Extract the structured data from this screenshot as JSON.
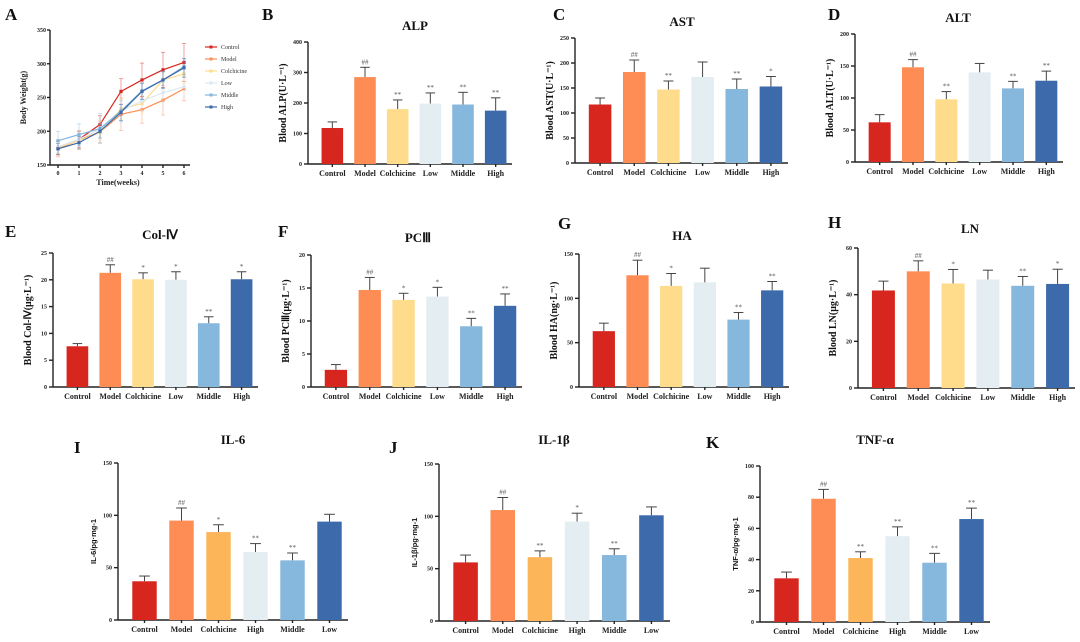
{
  "colors": {
    "Control": "#d7261e",
    "Model": "#fd8d55",
    "Colchicine": "#fedc8c",
    "Colchicine_cytokine": "#fdb55a",
    "Low": "#e4edf1",
    "High_cytokine": "#e4edf1",
    "Middle": "#86b7dc",
    "High": "#3c6aab",
    "Low_cytokine": "#3c6aab"
  },
  "chart_data": [
    {
      "id": "A",
      "panel_label": "A",
      "type": "line",
      "title": "",
      "xlabel": "Time(weeks)",
      "ylabel": "Body Weight(g)",
      "x": [
        0,
        1,
        2,
        3,
        4,
        5,
        6
      ],
      "ylim": [
        150,
        350
      ],
      "yticks": [
        150,
        200,
        250,
        300,
        350
      ],
      "legend_position": "right",
      "series": [
        {
          "name": "Control",
          "color": "#d7261e",
          "values": [
            175,
            188,
            210,
            259,
            276,
            291,
            302
          ],
          "err": [
            10,
            12,
            13,
            19,
            25,
            26,
            28
          ]
        },
        {
          "name": "Model",
          "color": "#fd8d55",
          "values": [
            174,
            187,
            199,
            225,
            232,
            246,
            263
          ],
          "err": [
            12,
            14,
            16,
            24,
            20,
            22,
            18
          ]
        },
        {
          "name": "Colchicine",
          "color": "#fedc8c",
          "values": [
            176,
            186,
            198,
            233,
            241,
            276,
            285
          ],
          "err": [
            8,
            10,
            12,
            15,
            14,
            12,
            14
          ]
        },
        {
          "name": "Low",
          "color": "#dbe8f3",
          "values": [
            177,
            188,
            203,
            230,
            245,
            257,
            266
          ],
          "err": [
            9,
            10,
            11,
            14,
            14,
            15,
            15
          ]
        },
        {
          "name": "Middle",
          "color": "#86b7dc",
          "values": [
            186,
            195,
            204,
            230,
            260,
            276,
            296
          ],
          "err": [
            14,
            16,
            22,
            16,
            12,
            13,
            12
          ]
        },
        {
          "name": "High",
          "color": "#3c6aab",
          "values": [
            174,
            183,
            200,
            228,
            259,
            276,
            294
          ],
          "err": [
            8,
            9,
            10,
            12,
            12,
            12,
            14
          ]
        }
      ]
    },
    {
      "id": "B",
      "panel_label": "B",
      "type": "bar",
      "title": "ALP",
      "ylabel": "Blood ALP(U·L⁻¹)",
      "ylim": [
        0,
        400
      ],
      "yticks": [
        0,
        100,
        200,
        300,
        400
      ],
      "categories": [
        "Control",
        "Model",
        "Colchicine",
        "Low",
        "Middle",
        "High"
      ],
      "values": [
        118,
        285,
        180,
        198,
        195,
        175
      ],
      "err": [
        20,
        32,
        30,
        35,
        40,
        42
      ],
      "sig": [
        "",
        "##",
        "**",
        "**",
        "**",
        "**"
      ]
    },
    {
      "id": "C",
      "panel_label": "C",
      "type": "bar",
      "title": "AST",
      "ylabel": "Blood AST(U·L⁻¹)",
      "ylim": [
        0,
        250
      ],
      "yticks": [
        0,
        50,
        100,
        150,
        200,
        250
      ],
      "categories": [
        "Control",
        "Model",
        "Colchicine",
        "Low",
        "Middle",
        "High"
      ],
      "values": [
        117,
        182,
        147,
        172,
        148,
        153
      ],
      "err": [
        13,
        24,
        17,
        30,
        20,
        20
      ],
      "sig": [
        "",
        "##",
        "**",
        "",
        "**",
        "*"
      ]
    },
    {
      "id": "D",
      "panel_label": "D",
      "type": "bar",
      "title": "ALT",
      "ylabel": "Blood ALT(U·L⁻¹)",
      "ylim": [
        0,
        200
      ],
      "yticks": [
        0,
        50,
        100,
        150,
        200
      ],
      "categories": [
        "Control",
        "Model",
        "Colchicine",
        "Low",
        "Middle",
        "High"
      ],
      "values": [
        62,
        148,
        98,
        140,
        115,
        127
      ],
      "err": [
        12,
        12,
        12,
        14,
        11,
        15
      ],
      "sig": [
        "",
        "##",
        "**",
        "",
        "**",
        "**"
      ]
    },
    {
      "id": "E",
      "panel_label": "E",
      "type": "bar",
      "title": "Col-Ⅳ",
      "ylabel": "Blood Col-Ⅳ(μg·L⁻¹)",
      "ylim": [
        0,
        25
      ],
      "yticks": [
        0,
        5,
        10,
        15,
        20,
        25
      ],
      "categories": [
        "Control",
        "Model",
        "Colchicine",
        "Low",
        "Middle",
        "High"
      ],
      "values": [
        7.6,
        21.3,
        20.1,
        20.0,
        11.9,
        20.1
      ],
      "err": [
        0.5,
        1.5,
        1.2,
        1.5,
        1.2,
        1.4
      ],
      "sig": [
        "",
        "##",
        "*",
        "*",
        "**",
        "*"
      ]
    },
    {
      "id": "F",
      "panel_label": "F",
      "type": "bar",
      "title": "PCⅢ",
      "ylabel": "Blood PCⅢ(μg·L⁻¹)",
      "ylim": [
        0,
        20
      ],
      "yticks": [
        0,
        5,
        10,
        15,
        20
      ],
      "categories": [
        "Control",
        "Model",
        "Colchicine",
        "Low",
        "Middle",
        "High"
      ],
      "values": [
        2.6,
        14.7,
        13.2,
        13.7,
        9.2,
        12.3
      ],
      "err": [
        0.8,
        1.9,
        1.0,
        1.4,
        1.2,
        1.8
      ],
      "sig": [
        "",
        "##",
        "*",
        "*",
        "**",
        "**"
      ]
    },
    {
      "id": "G",
      "panel_label": "G",
      "type": "bar",
      "title": "HA",
      "ylabel": "Blood HA(ng·L⁻¹)",
      "ylim": [
        0,
        150
      ],
      "yticks": [
        0,
        50,
        100,
        150
      ],
      "categories": [
        "Control",
        "Model",
        "Colchicine",
        "Low",
        "Middle",
        "High"
      ],
      "values": [
        63,
        126,
        114,
        118,
        76,
        109
      ],
      "err": [
        9,
        17,
        14,
        16,
        8,
        10
      ],
      "sig": [
        "",
        "##",
        "*",
        "",
        "**",
        "**"
      ]
    },
    {
      "id": "H",
      "panel_label": "H",
      "type": "bar",
      "title": "LN",
      "ylabel": "Blood LN(μg·L⁻¹)",
      "ylim": [
        0,
        60
      ],
      "yticks": [
        0,
        20,
        40,
        60
      ],
      "categories": [
        "Control",
        "Model",
        "Colchicine",
        "Low",
        "Middle",
        "High"
      ],
      "values": [
        41.8,
        50.0,
        44.8,
        46.5,
        43.8,
        44.6
      ],
      "err": [
        4,
        4.5,
        6,
        4,
        4,
        6.3
      ],
      "sig": [
        "",
        "##",
        "*",
        "",
        "**",
        "*"
      ]
    },
    {
      "id": "I",
      "panel_label": "I",
      "type": "bar",
      "title": "IL-6",
      "ylabel": "IL-6/pg·mg-1",
      "ylim": [
        0,
        150
      ],
      "yticks": [
        0,
        50,
        100,
        150
      ],
      "categories": [
        "Control",
        "Model",
        "Colchicine",
        "High",
        "Middle",
        "Low"
      ],
      "values": [
        37,
        95,
        84,
        65,
        57,
        94
      ],
      "err": [
        5,
        12,
        7,
        8,
        7,
        7
      ],
      "sig": [
        "",
        "##",
        "*",
        "**",
        "**",
        ""
      ],
      "cytokine": true
    },
    {
      "id": "J",
      "panel_label": "J",
      "type": "bar",
      "title": "IL-1β",
      "ylabel": "IL-1β/pg·mg-1",
      "ylim": [
        0,
        150
      ],
      "yticks": [
        0,
        50,
        100,
        150
      ],
      "categories": [
        "Control",
        "Model",
        "Colchicine",
        "High",
        "Middle",
        "Low"
      ],
      "values": [
        56,
        106,
        61,
        95,
        63,
        101
      ],
      "err": [
        7,
        12,
        6,
        8,
        6,
        8
      ],
      "sig": [
        "",
        "##",
        "**",
        "*",
        "**",
        ""
      ],
      "cytokine": true
    },
    {
      "id": "K",
      "panel_label": "K",
      "type": "bar",
      "title": "TNF-α",
      "ylabel": "TNF-α/pg·mg-1",
      "ylim": [
        0,
        100
      ],
      "yticks": [
        0,
        20,
        40,
        60,
        80,
        100
      ],
      "categories": [
        "Control",
        "Model",
        "Colchicine",
        "High",
        "Middle",
        "Low"
      ],
      "values": [
        28,
        79,
        41,
        55,
        38,
        66
      ],
      "err": [
        4,
        6,
        4,
        6,
        6,
        7
      ],
      "sig": [
        "",
        "##",
        "**",
        "**",
        "**",
        "**"
      ],
      "cytokine": true
    }
  ]
}
